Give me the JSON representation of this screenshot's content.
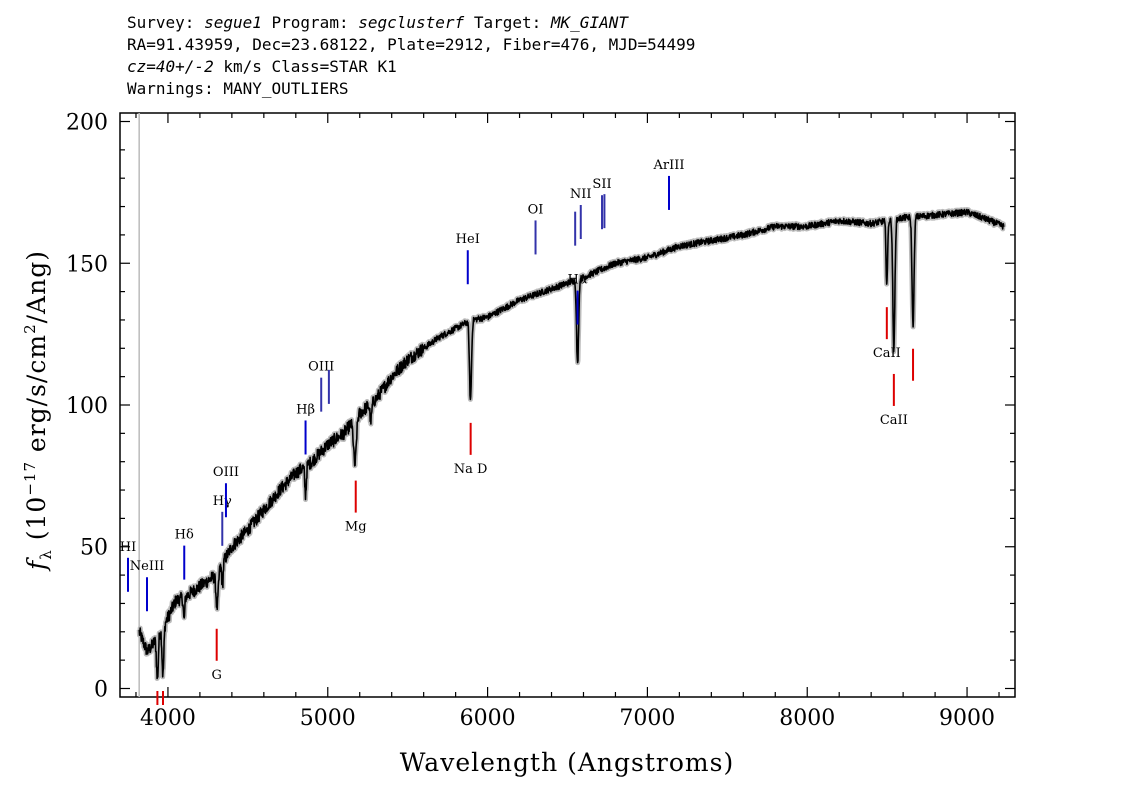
{
  "header": {
    "survey_label": "Survey:",
    "survey": "segue1",
    "program_label": "Program:",
    "program": "segclusterf",
    "target_label": "Target:",
    "target": "MK_GIANT",
    "line2": "RA=91.43959, Dec=23.68122, Plate=2912, Fiber=476, MJD=54499",
    "cz": "cz=40+/-2",
    "line3_rest": "km/s Class=STAR K1",
    "line4": "Warnings: MANY_OUTLIERS"
  },
  "chart_data": {
    "type": "line",
    "xlabel": "Wavelength (Angstroms)",
    "ylabel": "f_λ (10^-17 erg/s/cm^2/Ang)",
    "xlim": [
      3700,
      9300
    ],
    "ylim": [
      -3,
      203
    ],
    "xticks": [
      4000,
      5000,
      6000,
      7000,
      8000,
      9000
    ],
    "yticks": [
      0,
      50,
      100,
      150,
      200
    ],
    "colors": {
      "spectrum": "#000000",
      "error": "#bbbbbb",
      "emission": "#0000cc",
      "absorption": "#dd0000"
    },
    "continuum": {
      "x": [
        3820,
        3870,
        3900,
        3950,
        4000,
        4050,
        4100,
        4200,
        4300,
        4400,
        4500,
        4600,
        4700,
        4800,
        4900,
        5000,
        5100,
        5200,
        5300,
        5400,
        5500,
        5600,
        5700,
        5800,
        5900,
        6000,
        6200,
        6400,
        6600,
        6800,
        7000,
        7200,
        7400,
        7600,
        7800,
        8000,
        8200,
        8400,
        8600,
        8800,
        9000,
        9100,
        9230
      ],
      "y": [
        20,
        13,
        15,
        20,
        25,
        31,
        32,
        36,
        40,
        50,
        56,
        63,
        70,
        76,
        80,
        86,
        90,
        97,
        102,
        110,
        116,
        120,
        124,
        127,
        130,
        131,
        137,
        141,
        145,
        150,
        152,
        156,
        158,
        160,
        163,
        163,
        165,
        164,
        166,
        167,
        168,
        166,
        163
      ]
    },
    "absorption_features": [
      {
        "x": 3934,
        "depth": 15,
        "width": 8
      },
      {
        "x": 3969,
        "depth": 17,
        "width": 8
      },
      {
        "x": 4101,
        "depth": 8,
        "width": 6
      },
      {
        "x": 4308,
        "depth": 12,
        "width": 10
      },
      {
        "x": 4341,
        "depth": 8,
        "width": 6
      },
      {
        "x": 4861,
        "depth": 10,
        "width": 7
      },
      {
        "x": 5170,
        "depth": 16,
        "width": 12
      },
      {
        "x": 5270,
        "depth": 6,
        "width": 8
      },
      {
        "x": 5893,
        "depth": 28,
        "width": 9
      },
      {
        "x": 6563,
        "depth": 30,
        "width": 9
      },
      {
        "x": 8498,
        "depth": 22,
        "width": 7
      },
      {
        "x": 8542,
        "depth": 46,
        "width": 9
      },
      {
        "x": 8662,
        "depth": 38,
        "width": 9
      }
    ],
    "emission_lines": [
      {
        "label": "HI",
        "x": 3750
      },
      {
        "label": "NeIII",
        "x": 3869
      },
      {
        "label": "Hδ",
        "x": 4102
      },
      {
        "label": "Hγ",
        "x": 4340
      },
      {
        "label": "OIII",
        "x": 4363
      },
      {
        "label": "Hβ",
        "x": 4861
      },
      {
        "label": "OIII",
        "x": 4959
      },
      {
        "label": "OIII",
        "x": 5007
      },
      {
        "label": "HeI",
        "x": 5876
      },
      {
        "label": "OI",
        "x": 6300
      },
      {
        "label": "NII",
        "x": 6548
      },
      {
        "label": "Hα",
        "x": 6563
      },
      {
        "label": "NII",
        "x": 6583
      },
      {
        "label": "SII",
        "x": 6716
      },
      {
        "label": "SII",
        "x": 6731
      },
      {
        "label": "ArIII",
        "x": 7135
      }
    ],
    "absorption_lines": [
      {
        "label": "",
        "x": 3934
      },
      {
        "label": "",
        "x": 3969
      },
      {
        "label": "G",
        "x": 4305
      },
      {
        "label": "Mg",
        "x": 5175
      },
      {
        "label": "Na D",
        "x": 5894
      },
      {
        "label": "CaII",
        "x": 8498
      },
      {
        "label": "CaII",
        "x": 8542
      },
      {
        "label": "",
        "x": 8662
      }
    ]
  }
}
